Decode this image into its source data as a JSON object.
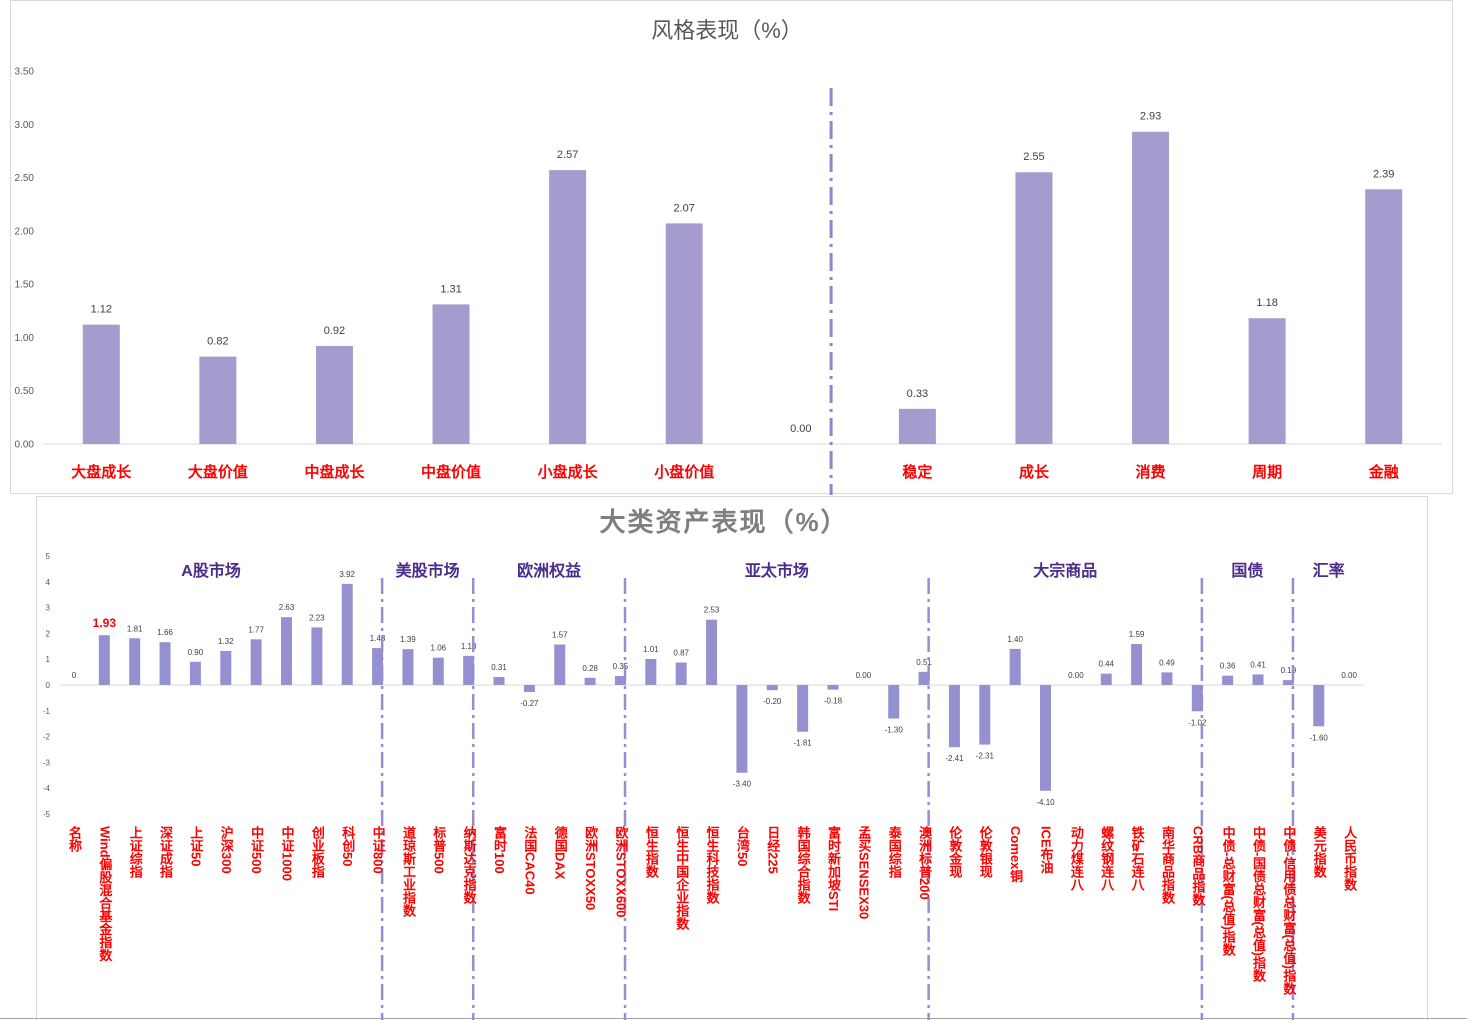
{
  "chart_data": [
    {
      "type": "bar",
      "title": "风格表现（%）",
      "categories": [
        "大盘成长",
        "大盘价值",
        "中盘成长",
        "中盘价值",
        "小盘成长",
        "小盘价值",
        "",
        "稳定",
        "成长",
        "消费",
        "周期",
        "金融"
      ],
      "values": [
        1.12,
        0.82,
        0.92,
        1.31,
        2.57,
        2.07,
        0.0,
        0.33,
        2.55,
        2.93,
        1.18,
        2.39
      ],
      "value_labels": [
        "1.12",
        "0.82",
        "0.92",
        "1.31",
        "2.57",
        "2.07",
        "0.00",
        "0.33",
        "2.55",
        "2.93",
        "1.18",
        "2.39"
      ],
      "ylim": [
        0,
        3.5
      ],
      "yticks": [
        "0.00",
        "0.50",
        "1.00",
        "1.50",
        "2.00",
        "2.50",
        "3.00",
        "3.50"
      ],
      "groups": [
        {
          "range": [
            0,
            6
          ]
        },
        {
          "range": [
            7,
            11
          ]
        }
      ],
      "grid": false,
      "colors": {
        "bar": "#a69bcf",
        "category_label": "#ff0000",
        "divider": "#8e86c6"
      }
    },
    {
      "type": "bar",
      "title": "大类资产表现（%）",
      "categories": [
        "名称",
        "Wind偏股混合基金指数",
        "上证综指",
        "深证成指",
        "上证50",
        "沪深300",
        "中证500",
        "中证1000",
        "创业板指",
        "科创50",
        "中证800",
        "道琼斯工业指数",
        "标普500",
        "纳斯达克指数",
        "富时100",
        "法国CAC40",
        "德国DAX",
        "欧洲STOXX50",
        "欧洲STOXX600",
        "恒生指数",
        "恒生中国企业指数",
        "恒生科技指数",
        "台湾50",
        "日经225",
        "韩国综合指数",
        "富时新加坡STI",
        "孟买SENSEX30",
        "泰国综指",
        "澳洲标普200",
        "伦敦金现",
        "伦敦银现",
        "Comex铜",
        "ICE布油",
        "动力煤连八",
        "螺纹钢连八",
        "铁矿石连八",
        "南华商品指数",
        "CRB商品指数",
        "中债-总财富(总值)指数",
        "中债-国债总财富(总值)指数",
        "中债-信用债总财富(总值)指数",
        "美元指数",
        "人民币指数"
      ],
      "values": [
        0,
        1.93,
        1.81,
        1.66,
        0.9,
        1.32,
        1.77,
        2.63,
        2.23,
        3.92,
        1.43,
        1.39,
        1.06,
        1.13,
        0.31,
        -0.27,
        1.57,
        0.28,
        0.35,
        1.01,
        0.87,
        2.53,
        -3.4,
        -0.2,
        -1.81,
        -0.18,
        0.0,
        -1.3,
        0.51,
        -2.41,
        -2.31,
        1.4,
        -4.1,
        0.0,
        0.44,
        1.59,
        0.49,
        -1.02,
        0.36,
        0.41,
        0.19,
        -1.6,
        0.0
      ],
      "value_labels": [
        "0",
        "1.93",
        "1.81",
        "1.66",
        "0.90",
        "1.32",
        "1.77",
        "2.63",
        "2.23",
        "3.92",
        "1.43",
        "1.39",
        "1.06",
        "1.13",
        "0.31",
        "-0.27",
        "1.57",
        "0.28",
        "0.35",
        "1.01",
        "0.87",
        "2.53",
        "-3.40",
        "-0.20",
        "-1.81",
        "-0.18",
        "0.00",
        "-1.30",
        "0.51",
        "-2.41",
        "-2.31",
        "1.40",
        "-4.10",
        "0.00",
        "0.44",
        "1.59",
        "0.49",
        "-1.02",
        "0.36",
        "0.41",
        "0.19",
        "-1.60",
        "0.00"
      ],
      "ylim": [
        -5,
        5
      ],
      "yticks": [
        "-5",
        "-4",
        "-3",
        "-2",
        "-1",
        "0",
        "1",
        "2",
        "3",
        "4",
        "5"
      ],
      "groups": [
        {
          "name": "A股市场",
          "range": [
            1,
            10
          ]
        },
        {
          "name": "美股市场",
          "range": [
            11,
            13
          ]
        },
        {
          "name": "欧洲权益",
          "range": [
            14,
            18
          ]
        },
        {
          "name": "亚太市场",
          "range": [
            19,
            28
          ]
        },
        {
          "name": "大宗商品",
          "range": [
            29,
            37
          ]
        },
        {
          "name": "国债",
          "range": [
            38,
            40
          ]
        },
        {
          "name": "汇率",
          "range": [
            41,
            42
          ]
        }
      ],
      "highlight": {
        "index": 1,
        "color": "#ff0000"
      },
      "grid": false,
      "colors": {
        "bar": "#9591d1",
        "category_label": "#ff0000",
        "divider": "#9490d0",
        "group_header": "#4b2c8c"
      }
    }
  ]
}
